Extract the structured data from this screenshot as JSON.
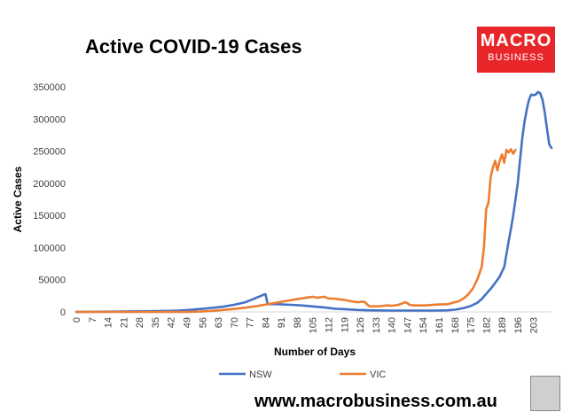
{
  "chart_data": {
    "type": "line",
    "title": "Active COVID-19 Cases",
    "xlabel": "Number of Days",
    "ylabel": "Active Cases",
    "xlim": [
      0,
      211
    ],
    "ylim": [
      0,
      350000
    ],
    "x_ticks": [
      0,
      7,
      14,
      21,
      28,
      35,
      42,
      49,
      56,
      63,
      70,
      77,
      84,
      91,
      98,
      105,
      112,
      119,
      126,
      133,
      140,
      147,
      154,
      161,
      168,
      175,
      182,
      189,
      196,
      203
    ],
    "y_ticks": [
      0,
      50000,
      100000,
      150000,
      200000,
      250000,
      300000,
      350000
    ],
    "y_tick_labels": [
      "0",
      "50000",
      "100000",
      "150000",
      "200000",
      "250000",
      "300000",
      "350000"
    ],
    "grid": false,
    "legend": "bottom",
    "series": [
      {
        "name": "NSW",
        "color": "#4472c4",
        "x": [
          0,
          20,
          30,
          40,
          45,
          50,
          55,
          60,
          65,
          70,
          75,
          78,
          80,
          82,
          83,
          84,
          85,
          90,
          95,
          100,
          105,
          110,
          115,
          120,
          125,
          130,
          140,
          150,
          160,
          165,
          168,
          170,
          172,
          175,
          178,
          180,
          182,
          184,
          186,
          188,
          190,
          191,
          192,
          193,
          194,
          195,
          196,
          197,
          198,
          199,
          200,
          201,
          202,
          203,
          204,
          205,
          206,
          207,
          208,
          209,
          210,
          211
        ],
        "y": [
          0,
          500,
          1000,
          1500,
          2000,
          3000,
          4500,
          6000,
          8000,
          11000,
          15000,
          19000,
          22000,
          25000,
          26500,
          27500,
          12000,
          12000,
          11000,
          10000,
          8500,
          7000,
          5000,
          4000,
          3000,
          2500,
          2000,
          2000,
          2000,
          2500,
          3500,
          4500,
          6000,
          9000,
          14000,
          20000,
          28000,
          36000,
          45000,
          55000,
          70000,
          90000,
          110000,
          130000,
          150000,
          175000,
          200000,
          235000,
          270000,
          295000,
          315000,
          330000,
          338000,
          337000,
          338000,
          342000,
          340000,
          330000,
          310000,
          285000,
          260000,
          255000
        ]
      },
      {
        "name": "VIC",
        "color": "#ed7d31",
        "x": [
          0,
          30,
          40,
          50,
          55,
          60,
          65,
          70,
          75,
          80,
          85,
          90,
          95,
          100,
          103,
          105,
          107,
          110,
          112,
          115,
          118,
          120,
          122,
          125,
          127,
          128,
          130,
          132,
          135,
          138,
          140,
          143,
          145,
          146,
          147,
          148,
          150,
          155,
          160,
          165,
          168,
          170,
          172,
          174,
          176,
          178,
          180,
          181,
          182,
          183,
          184,
          185,
          186,
          187,
          188,
          189,
          190,
          191,
          192,
          193,
          194,
          195
        ],
        "y": [
          0,
          0,
          0,
          0,
          500,
          1500,
          3000,
          4500,
          6500,
          9000,
          12000,
          15000,
          18000,
          21000,
          22500,
          23500,
          22000,
          23500,
          21000,
          20500,
          19000,
          18000,
          16500,
          15000,
          16000,
          15500,
          9000,
          8500,
          9000,
          10000,
          9500,
          11000,
          13500,
          15000,
          13500,
          11000,
          10000,
          10000,
          11500,
          12000,
          15000,
          17000,
          21000,
          27000,
          36000,
          50000,
          70000,
          100000,
          160000,
          170000,
          210000,
          225000,
          235000,
          220000,
          235000,
          245000,
          232000,
          252000,
          248000,
          253000,
          246000,
          252000
        ]
      }
    ]
  },
  "footer": "www.macrobusiness.com.au",
  "logo": {
    "line1": "MACRO",
    "line2": "BUSINESS"
  }
}
